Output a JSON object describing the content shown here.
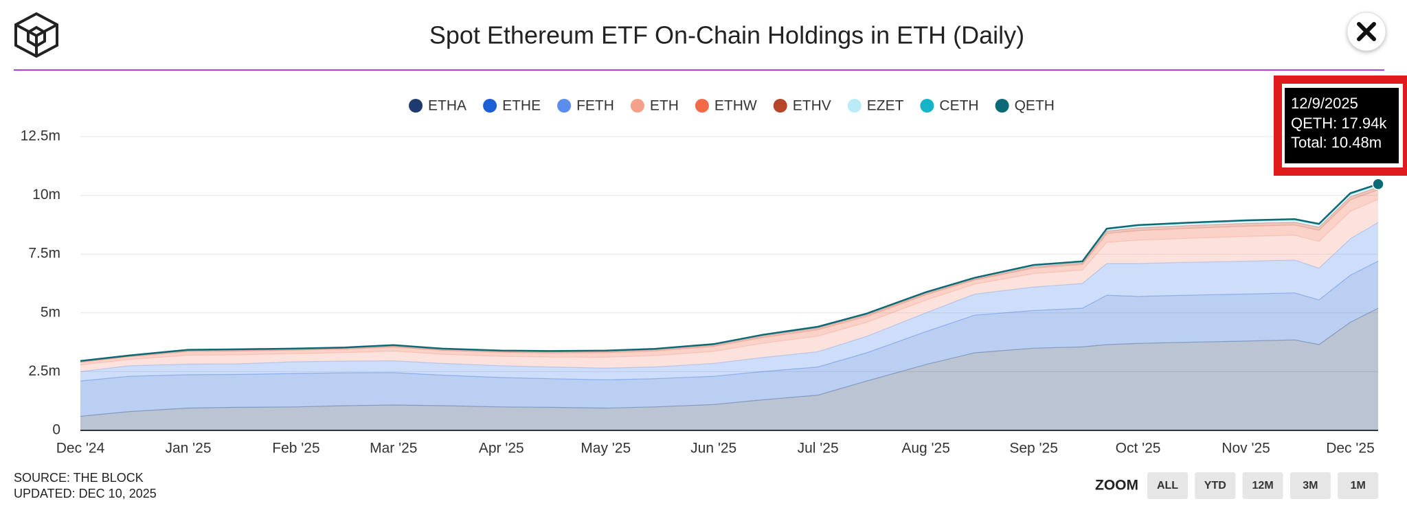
{
  "chart_data": {
    "type": "stacked_area",
    "title": "Spot Ethereum ETF On-Chain Holdings in ETH (Daily)",
    "x": [
      "2024-12-01",
      "2024-12-15",
      "2025-01-01",
      "2025-01-15",
      "2025-02-01",
      "2025-02-15",
      "2025-03-01",
      "2025-03-15",
      "2025-04-01",
      "2025-04-15",
      "2025-05-01",
      "2025-05-15",
      "2025-06-01",
      "2025-06-15",
      "2025-07-01",
      "2025-07-15",
      "2025-08-01",
      "2025-08-15",
      "2025-09-01",
      "2025-09-15",
      "2025-09-22",
      "2025-10-01",
      "2025-10-15",
      "2025-11-01",
      "2025-11-15",
      "2025-11-22",
      "2025-12-01",
      "2025-12-09"
    ],
    "series": [
      {
        "name": "ETHA",
        "color": "#1f3a6e",
        "values": [
          600000,
          800000,
          950000,
          980000,
          1000000,
          1050000,
          1080000,
          1050000,
          1000000,
          980000,
          950000,
          1000000,
          1100000,
          1300000,
          1500000,
          2100000,
          2800000,
          3300000,
          3500000,
          3550000,
          3650000,
          3700000,
          3750000,
          3800000,
          3850000,
          3650000,
          4600000,
          5200000
        ]
      },
      {
        "name": "ETHE",
        "color": "#1d5fd6",
        "values": [
          1500000,
          1500000,
          1420000,
          1400000,
          1420000,
          1400000,
          1380000,
          1300000,
          1250000,
          1220000,
          1200000,
          1200000,
          1200000,
          1200000,
          1200000,
          1200000,
          1400000,
          1600000,
          1600000,
          1650000,
          2100000,
          2000000,
          2000000,
          2000000,
          2000000,
          1900000,
          2000000,
          2000000
        ]
      },
      {
        "name": "FETH",
        "color": "#5b8def",
        "values": [
          400000,
          450000,
          450000,
          450000,
          500000,
          500000,
          500000,
          500000,
          500000,
          500000,
          500000,
          500000,
          550000,
          600000,
          650000,
          700000,
          800000,
          900000,
          1000000,
          1050000,
          1350000,
          1400000,
          1400000,
          1400000,
          1400000,
          1350000,
          1550000,
          1650000
        ]
      },
      {
        "name": "ETH",
        "color": "#f4a08a",
        "values": [
          282000,
          270000,
          378000,
          384000,
          348000,
          360000,
          414000,
          390000,
          402000,
          420000,
          462000,
          480000,
          510000,
          600000,
          660000,
          600000,
          540000,
          420000,
          570000,
          570000,
          900000,
          990000,
          1020000,
          1050000,
          1050000,
          1140000,
          1170000,
          980000
        ]
      },
      {
        "name": "ETHW",
        "color": "#f26a4a",
        "values": [
          118000,
          113000,
          158000,
          160000,
          145000,
          150000,
          173000,
          163000,
          168000,
          175000,
          193000,
          200000,
          213000,
          250000,
          275000,
          250000,
          225000,
          175000,
          238000,
          238000,
          375000,
          413000,
          425000,
          438000,
          438000,
          475000,
          488000,
          410000
        ]
      },
      {
        "name": "ETHV",
        "color": "#b5462a",
        "values": [
          33000,
          32000,
          44000,
          45000,
          41000,
          42000,
          48000,
          46000,
          47000,
          49000,
          54000,
          56000,
          60000,
          70000,
          77000,
          70000,
          63000,
          49000,
          67000,
          67000,
          105000,
          116000,
          119000,
          123000,
          123000,
          133000,
          137000,
          115000
        ]
      },
      {
        "name": "EZET",
        "color": "#b9ecf7",
        "values": [
          19000,
          18000,
          25000,
          26000,
          23000,
          24000,
          28000,
          26000,
          27000,
          28000,
          31000,
          32000,
          34000,
          40000,
          44000,
          40000,
          36000,
          28000,
          38000,
          38000,
          60000,
          66000,
          68000,
          70000,
          70000,
          76000,
          78000,
          65000
        ]
      },
      {
        "name": "CETH",
        "color": "#17b3c9",
        "values": [
          0,
          0,
          0,
          0,
          0,
          0,
          0,
          0,
          0,
          0,
          0,
          0,
          0,
          0,
          0,
          5000,
          10000,
          15000,
          20000,
          22000,
          35000,
          40000,
          42000,
          45000,
          45000,
          50000,
          52000,
          41060
        ]
      },
      {
        "name": "QETH",
        "color": "#0b6a75",
        "values": [
          2000,
          2000,
          3000,
          3000,
          3000,
          3000,
          3000,
          3000,
          3000,
          3000,
          3000,
          3000,
          4000,
          4000,
          4000,
          5000,
          5000,
          5000,
          6000,
          6000,
          8000,
          9000,
          10000,
          11000,
          12000,
          14000,
          16000,
          17940
        ]
      }
    ],
    "xlim": [
      "2024-12-01",
      "2025-12-09"
    ],
    "xticks": [
      {
        "value": "2024-12-01",
        "label": "Dec '24"
      },
      {
        "value": "2025-01-01",
        "label": "Jan '25"
      },
      {
        "value": "2025-02-01",
        "label": "Feb '25"
      },
      {
        "value": "2025-03-01",
        "label": "Mar '25"
      },
      {
        "value": "2025-04-01",
        "label": "Apr '25"
      },
      {
        "value": "2025-05-01",
        "label": "May '25"
      },
      {
        "value": "2025-06-01",
        "label": "Jun '25"
      },
      {
        "value": "2025-07-01",
        "label": "Jul '25"
      },
      {
        "value": "2025-08-01",
        "label": "Aug '25"
      },
      {
        "value": "2025-09-01",
        "label": "Sep '25"
      },
      {
        "value": "2025-10-01",
        "label": "Oct '25"
      },
      {
        "value": "2025-11-01",
        "label": "Nov '25"
      },
      {
        "value": "2025-12-01",
        "label": "Dec '25"
      }
    ],
    "ylim": [
      0,
      12500000
    ],
    "yticks": [
      0,
      {
        "value": 2500000,
        "label": "2.5m"
      },
      {
        "value": 5000000,
        "label": "5m"
      },
      {
        "value": 7500000,
        "label": "7.5m"
      },
      {
        "value": 10000000,
        "label": "10m"
      },
      {
        "value": 12500000,
        "label": "12.5m"
      }
    ],
    "grid": true,
    "legend": "top",
    "tooltip": {
      "date": "12/9/2025",
      "lines": [
        "QETH: 17.94k",
        "Total: 10.48m"
      ]
    }
  },
  "footer": {
    "source": "SOURCE: THE BLOCK",
    "updated": "UPDATED: DEC 10, 2025"
  },
  "zoom": {
    "label": "ZOOM",
    "buttons": [
      "ALL",
      "YTD",
      "12M",
      "3M",
      "1M"
    ]
  }
}
